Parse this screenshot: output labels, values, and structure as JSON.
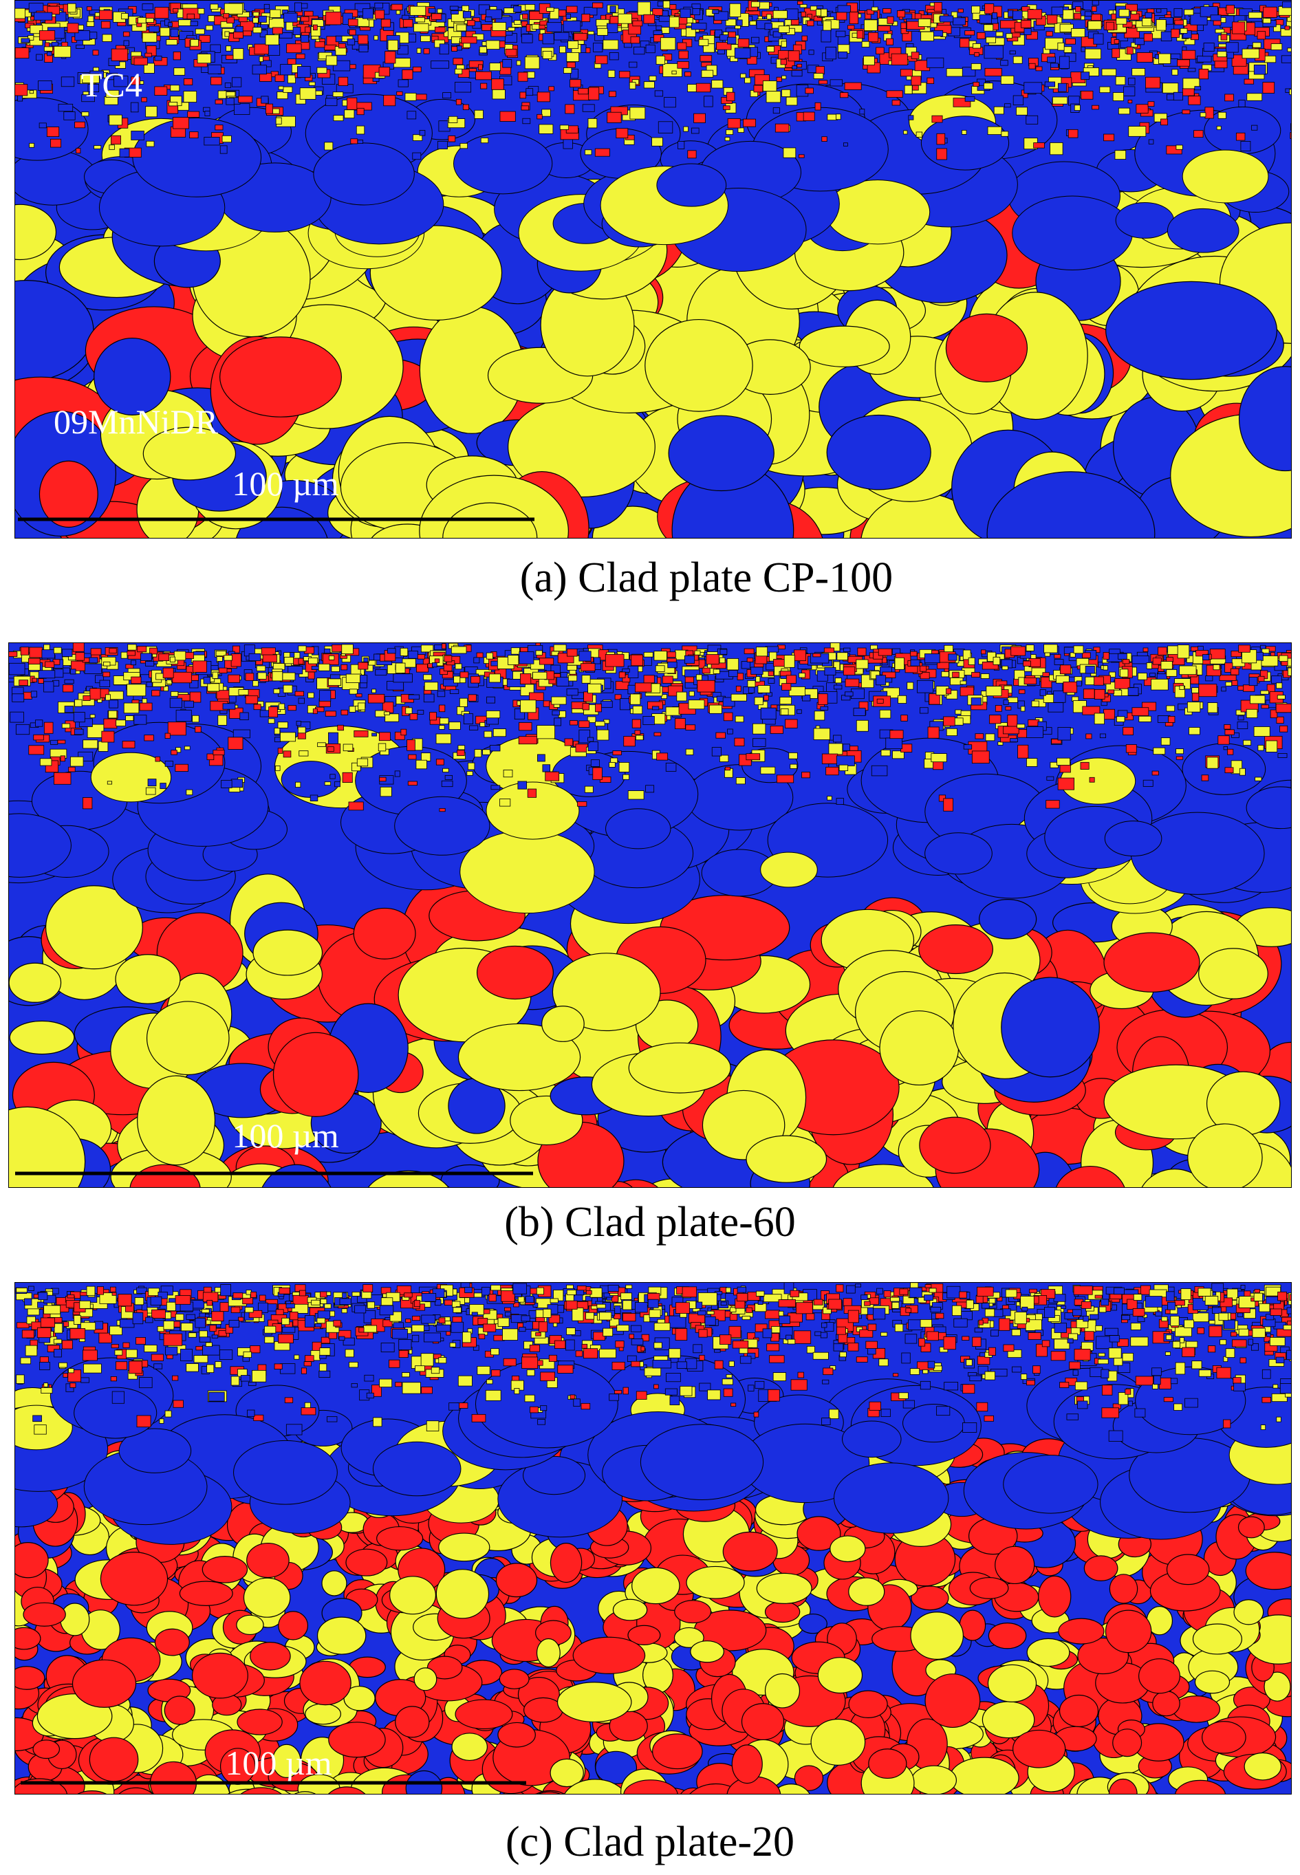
{
  "panels": [
    {
      "material_labels": [
        "TC4",
        "09MnNiDR"
      ],
      "scale_bar": "100 µm",
      "caption": "(a) Clad plate CP-100"
    },
    {
      "scale_bar": "100 µm",
      "caption": "(b) Clad plate-60"
    },
    {
      "scale_bar": "100 µm",
      "caption": "(c) Clad plate-20"
    }
  ]
}
